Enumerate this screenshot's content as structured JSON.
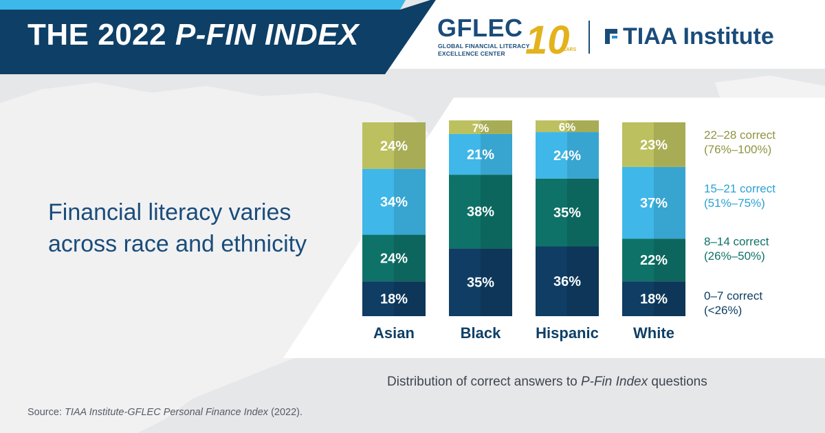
{
  "header": {
    "title_prefix": "THE 2022 ",
    "title_emphasis": "P-FIN INDEX"
  },
  "logos": {
    "gflec_word": "GFLEC",
    "gflec_line1": "GLOBAL FINANCIAL LITERACY",
    "gflec_line2": "EXCELLENCE CENTER",
    "anniversary_number": "10",
    "anniversary_word": "YEARS",
    "tiaa_word": "TIAA Institute"
  },
  "headline": {
    "line1": "Financial literacy varies",
    "line2": "across race and ethnicity"
  },
  "caption": {
    "prefix": "Distribution of correct answers to ",
    "emphasis": "P-Fin Index",
    "suffix": " questions"
  },
  "source": {
    "prefix": "Source: ",
    "emphasis": "TIAA Institute-GFLEC Personal Finance Index",
    "suffix": " (2022)."
  },
  "colors": {
    "banner_navy": "#0e3f66",
    "banner_stripe": "#3db8ea",
    "brand_blue": "#1a4c7a",
    "anniversary_gold": "#e3b21c",
    "tiaa_icon_blue": "#2a8fd0"
  },
  "chart_data": {
    "type": "bar",
    "stacked": true,
    "unit": "%",
    "categories": [
      "Asian",
      "Black",
      "Hispanic",
      "White"
    ],
    "series": [
      {
        "name": "0–7 correct",
        "range": "(<26%)",
        "color": "#0f3d63",
        "values": [
          18,
          35,
          36,
          18
        ]
      },
      {
        "name": "8–14 correct",
        "range": "(26%–50%)",
        "color": "#0e7268",
        "values": [
          24,
          38,
          35,
          22
        ]
      },
      {
        "name": "15–21 correct",
        "range": "(51%–75%)",
        "color": "#3fb7e8",
        "values": [
          34,
          21,
          24,
          37
        ]
      },
      {
        "name": "22–28 correct",
        "range": "(76%–100%)",
        "color": "#bcc05e",
        "values": [
          24,
          7,
          6,
          23
        ]
      }
    ],
    "legend_text_colors": [
      "#0f3d63",
      "#0e7268",
      "#2aa0d4",
      "#8f9440"
    ],
    "legend_position": "right",
    "grid": false,
    "ylim": [
      0,
      100
    ]
  }
}
